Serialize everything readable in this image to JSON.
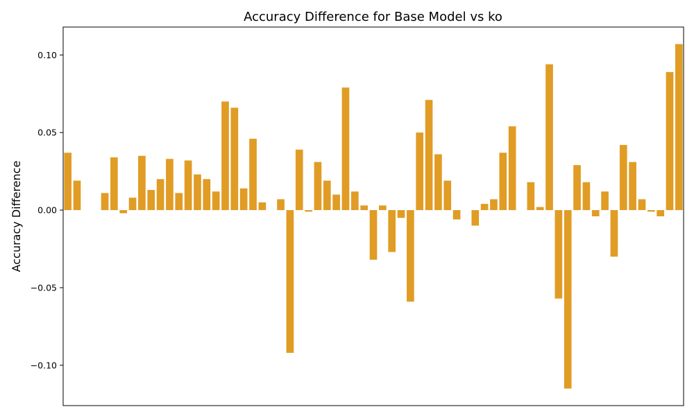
{
  "chart_data": {
    "type": "bar",
    "title": "Accuracy Difference for Base Model vs ko",
    "xlabel": "",
    "ylabel": "Accuracy Difference",
    "ylim": [
      -0.126,
      0.118
    ],
    "yticks": [
      -0.1,
      -0.05,
      0.0,
      0.05,
      0.1
    ],
    "ytick_labels": [
      "−0.10",
      "−0.05",
      "0.00",
      "0.05",
      "0.10"
    ],
    "x_ticks_shown": false,
    "grid": false,
    "bar_color": "#e09c24",
    "values": [
      0.037,
      0.019,
      0.0,
      0.0,
      0.011,
      0.034,
      -0.002,
      0.008,
      0.035,
      0.013,
      0.02,
      0.033,
      0.011,
      0.032,
      0.023,
      0.02,
      0.012,
      0.07,
      0.066,
      0.014,
      0.046,
      0.005,
      0.0,
      0.007,
      -0.092,
      0.039,
      -0.001,
      0.031,
      0.019,
      0.01,
      0.079,
      0.012,
      0.003,
      -0.032,
      0.003,
      -0.027,
      -0.005,
      -0.059,
      0.05,
      0.071,
      0.036,
      0.019,
      -0.006,
      0.0,
      -0.01,
      0.004,
      0.007,
      0.037,
      0.054,
      0.0,
      0.018,
      0.002,
      0.094,
      -0.057,
      -0.115,
      0.029,
      0.018,
      -0.004,
      0.012,
      -0.03,
      0.042,
      0.031,
      0.007,
      -0.001,
      -0.004,
      0.089,
      0.107
    ]
  }
}
